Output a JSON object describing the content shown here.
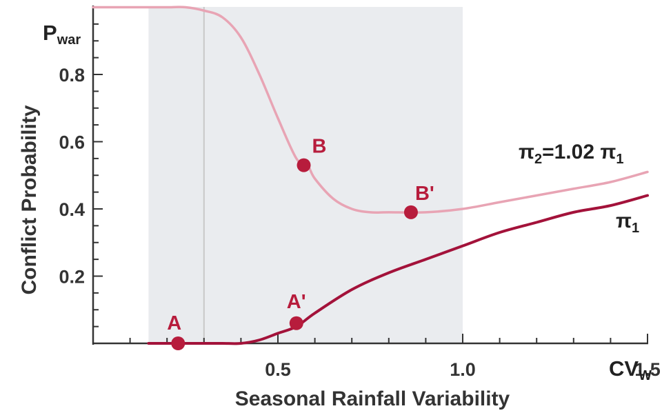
{
  "chart_data": {
    "type": "line",
    "xlabel": "Seasonal Rainfall Variability",
    "ylabel": "Conflict Probability",
    "y_corner_label": {
      "main": "P",
      "sub": "war"
    },
    "x_corner_label": {
      "main": "CV",
      "sub": "W"
    },
    "xlim": [
      0.0,
      1.5
    ],
    "ylim": [
      0.0,
      1.0
    ],
    "x_ticks": [
      0.5,
      1.0,
      1.5
    ],
    "x_tick_labels": [
      "0.5",
      "1.0",
      "1.5"
    ],
    "y_ticks": [
      0.2,
      0.4,
      0.6,
      0.8
    ],
    "y_tick_labels": [
      "0.2",
      "0.4",
      "0.6",
      "0.8"
    ],
    "grid": false,
    "shaded_regions": [
      {
        "x": [
          0.15,
          1.0
        ],
        "color": "#e9ebee"
      },
      {
        "x": [
          0.3,
          1.0
        ],
        "color": "#eaecef"
      }
    ],
    "reference_lines": [
      {
        "x": 0.3,
        "color": "#c8c8c8"
      }
    ],
    "series": [
      {
        "name_main": "π",
        "name_sub": "2",
        "name_rest": "=1.02 π",
        "name_rest_sub": "1",
        "color": "#e8a4b4",
        "x": [
          0.0,
          0.15,
          0.2,
          0.25,
          0.3,
          0.35,
          0.4,
          0.45,
          0.5,
          0.55,
          0.58,
          0.6,
          0.65,
          0.7,
          0.75,
          0.8,
          0.9,
          1.0,
          1.1,
          1.2,
          1.3,
          1.4,
          1.5
        ],
        "values": [
          1.0,
          1.0,
          1.0,
          1.0,
          0.99,
          0.97,
          0.91,
          0.8,
          0.67,
          0.55,
          0.53,
          0.49,
          0.43,
          0.4,
          0.39,
          0.39,
          0.39,
          0.4,
          0.42,
          0.44,
          0.46,
          0.48,
          0.51
        ]
      },
      {
        "name_main": "π",
        "name_sub": "1",
        "color": "#a3123a",
        "x": [
          0.15,
          0.25,
          0.3,
          0.35,
          0.4,
          0.45,
          0.5,
          0.55,
          0.6,
          0.7,
          0.8,
          0.9,
          1.0,
          1.1,
          1.2,
          1.3,
          1.4,
          1.5
        ],
        "values": [
          0.0,
          0.0,
          0.0,
          0.0,
          0.0,
          0.01,
          0.03,
          0.05,
          0.09,
          0.16,
          0.21,
          0.25,
          0.29,
          0.33,
          0.36,
          0.39,
          0.41,
          0.44
        ]
      }
    ],
    "points": [
      {
        "label": "A",
        "x": 0.23,
        "y": 0.0,
        "color": "#b71c3c"
      },
      {
        "label": "A'",
        "x": 0.55,
        "y": 0.06,
        "color": "#b71c3c"
      },
      {
        "label": "B",
        "x": 0.57,
        "y": 0.53,
        "color": "#b71c3c"
      },
      {
        "label": "B'",
        "x": 0.86,
        "y": 0.39,
        "color": "#b71c3c"
      }
    ]
  }
}
